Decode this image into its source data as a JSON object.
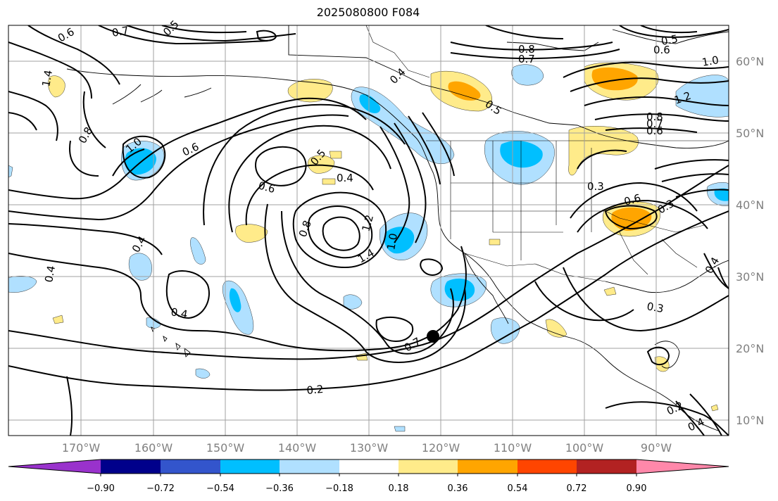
{
  "title": "2025080800 F084",
  "latitude_labels": [
    "60°N",
    "50°N",
    "40°N",
    "30°N",
    "20°N",
    "10°N"
  ],
  "longitude_labels": [
    "170°W",
    "160°W",
    "150°W",
    "140°W",
    "130°W",
    "120°W",
    "110°W",
    "100°W",
    "90°W"
  ],
  "colorbar": {
    "colors": [
      "#9932cc",
      "#00008b",
      "#3355cc",
      "#00bfff",
      "#b0e0ff",
      "#ffffff",
      "#ffeb8a",
      "#ffa500",
      "#ff4500",
      "#b22222",
      "#ff88aa"
    ],
    "tick_labels": [
      "−0.90",
      "−0.72",
      "−0.54",
      "−0.36",
      "−0.18",
      "0.18",
      "0.36",
      "0.54",
      "0.72",
      "0.90"
    ]
  },
  "contour_labels": [
    "0.6",
    "0.7",
    "0.5",
    "0.8",
    "0.7",
    "0.5",
    "0.6",
    "1.0",
    "1.2",
    "0.8",
    "0.7",
    "0.6",
    "1.4",
    "0.4",
    "0.8",
    "1.0",
    "0.6",
    "0.5",
    "0.6",
    "0.4",
    "0.8",
    "1.2",
    "1.4",
    "1.0",
    "0.4",
    "0.4",
    "0.4",
    "0.7",
    "0.2",
    "0.3",
    "0.6",
    "0.3",
    "0.3",
    "0.2",
    "0.4",
    "0.5",
    "0.4"
  ],
  "marker": {
    "name": "black dot",
    "lon": -121.0,
    "lat": 22.0
  }
}
